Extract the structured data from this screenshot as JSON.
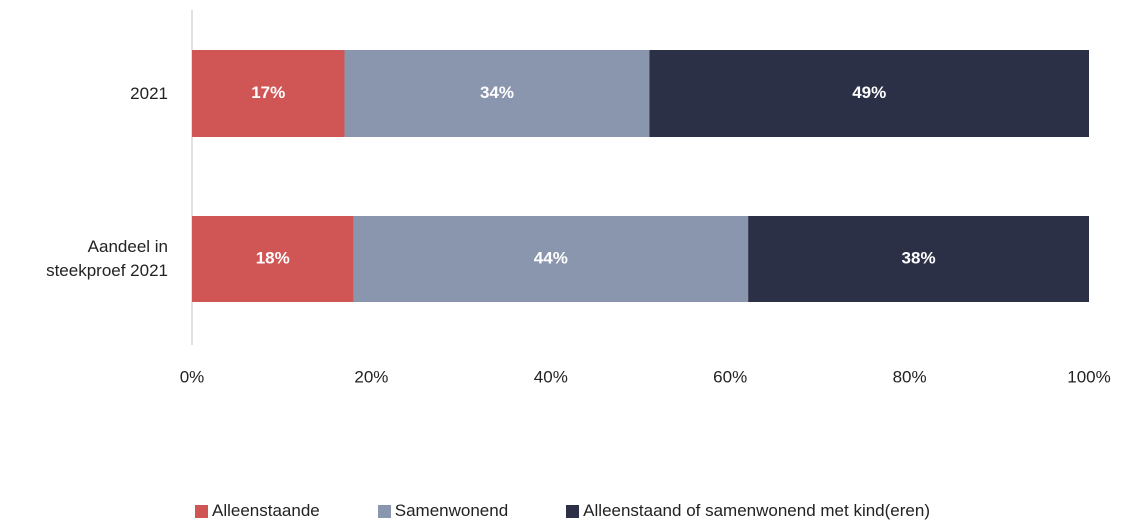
{
  "chart_data": {
    "type": "stacked_bar_horizontal",
    "categories": [
      "2021",
      "Aandeel in steekproef 2021"
    ],
    "series": [
      {
        "name": "Alleenstaande",
        "color": "#d05656",
        "values": [
          17,
          18
        ],
        "value_labels": [
          "17%",
          "18%"
        ]
      },
      {
        "name": "Samenwonend",
        "color": "#8a96ad",
        "values": [
          34,
          44
        ],
        "value_labels": [
          "34%",
          "44%"
        ]
      },
      {
        "name": "Alleenstaand of samenwonend met kind(eren)",
        "color": "#2b3047",
        "values": [
          49,
          38
        ],
        "value_labels": [
          "49%",
          "38%"
        ]
      }
    ],
    "xlim": [
      0,
      100
    ],
    "xticks": [
      {
        "value": 0,
        "label": "0%"
      },
      {
        "value": 20,
        "label": "20%"
      },
      {
        "value": 40,
        "label": "40%"
      },
      {
        "value": 60,
        "label": "60%"
      },
      {
        "value": 80,
        "label": "80%"
      },
      {
        "value": 100,
        "label": "100%"
      }
    ],
    "grid": false,
    "legend": "bottom"
  }
}
